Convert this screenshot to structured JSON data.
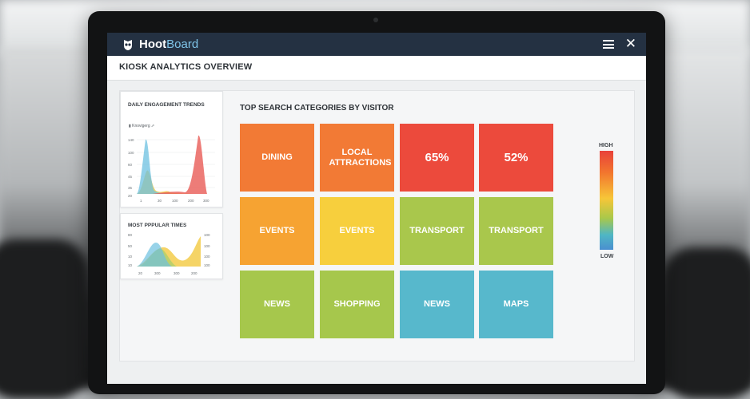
{
  "app": {
    "brand_part1": "Hoot",
    "brand_part2": "Board",
    "page_title": "KIOSK ANALYTICS OVERVIEW"
  },
  "engagement_card": {
    "title": "DAILY ENGAGEMENT TRENDS",
    "legend": "▮ Knovigerg ⬀",
    "y_ticks": [
      "140",
      "100",
      "60",
      "45",
      "35",
      "20"
    ],
    "x_ticks": [
      "1",
      "30",
      "100",
      "200",
      "300"
    ]
  },
  "popular_card": {
    "title": "MOST PPPULAR TIMES",
    "y_ticks": [
      "80",
      "50",
      "10",
      "10"
    ],
    "y_ticks_right": [
      "100",
      "100",
      "100",
      "100"
    ],
    "x_ticks": [
      "20",
      "300",
      "300",
      "200"
    ]
  },
  "heatmap": {
    "title": "TOP SEARCH CATEGORIES BY VISITOR",
    "tiles": [
      {
        "label": "DINING",
        "color": "#f27a35"
      },
      {
        "label": "LOCAL ATTRACTIONS",
        "color": "#f27a35"
      },
      {
        "label": "65%",
        "color": "#ec4a3c"
      },
      {
        "label": "52%",
        "color": "#ec4a3c"
      },
      {
        "label": "EVENTS",
        "color": "#f6a332"
      },
      {
        "label": "EVENTS",
        "color": "#f7cf3d"
      },
      {
        "label": "TRANSPORT",
        "color": "#a9c74c"
      },
      {
        "label": "TRANSPORT",
        "color": "#a9c74c"
      },
      {
        "label": "NEWS",
        "color": "#a6c74c"
      },
      {
        "label": "SHOPPING",
        "color": "#a6c74c"
      },
      {
        "label": "NEWS",
        "color": "#57b8cc"
      },
      {
        "label": "MAPS",
        "color": "#57b8cc"
      }
    ],
    "scale_high": "HIGH",
    "scale_low": "LOW"
  }
}
